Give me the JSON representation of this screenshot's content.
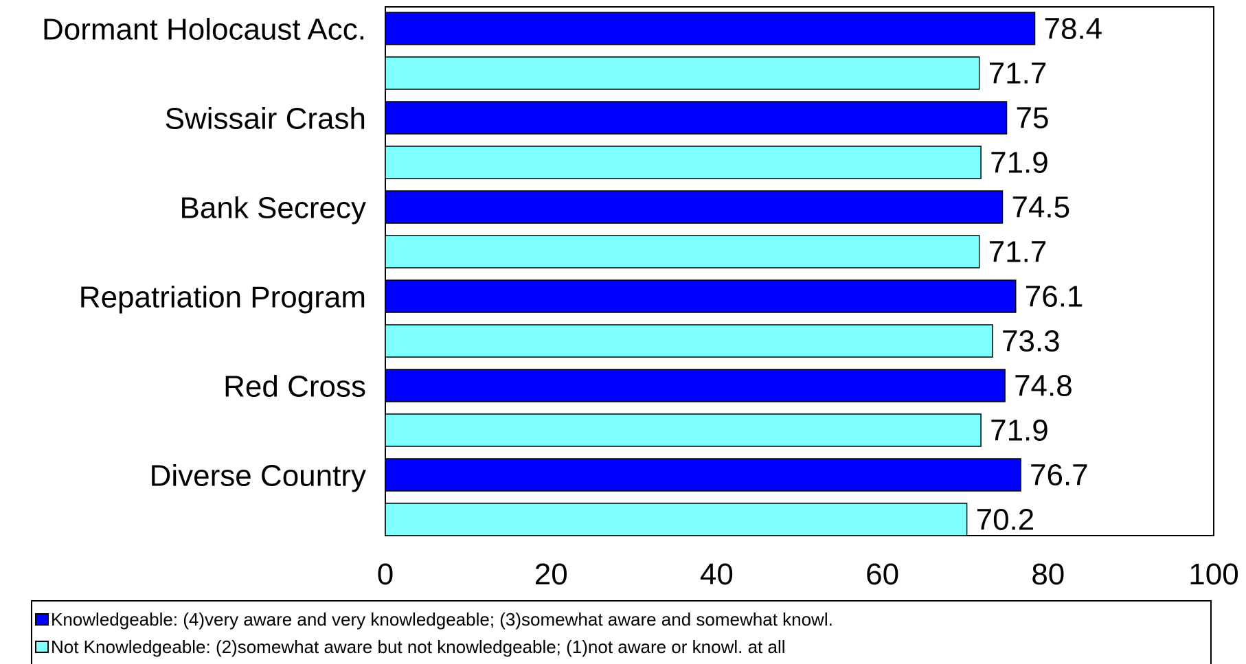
{
  "chart_data": {
    "type": "bar",
    "orientation": "horizontal",
    "categories": [
      "Dormant Holocaust Acc.",
      "Swissair Crash",
      "Bank Secrecy",
      "Repatriation Program",
      "Red Cross",
      "Diverse Country"
    ],
    "series": [
      {
        "name": "Knowledgeable: (4)very aware and very knowledgeable; (3)somewhat aware and somewhat knowl.",
        "color": "#0000ff",
        "values": [
          78.4,
          75,
          74.5,
          76.1,
          74.8,
          76.7
        ]
      },
      {
        "name": "Not Knowledgeable: (2)somewhat aware but not knowledgeable; (1)not aware or knowl. at all",
        "color": "#80ffff",
        "values": [
          71.7,
          71.9,
          71.7,
          73.3,
          71.9,
          70.2
        ]
      }
    ],
    "value_labels": [
      [
        "78.4",
        "75",
        "74.5",
        "76.1",
        "74.8",
        "76.7"
      ],
      [
        "71.7",
        "71.9",
        "71.7",
        "73.3",
        "71.9",
        "70.2"
      ]
    ],
    "xlim": [
      0,
      100
    ],
    "xticks": [
      0,
      20,
      40,
      60,
      80,
      100
    ],
    "xtick_labels": [
      "0",
      "20",
      "40",
      "60",
      "80",
      "100"
    ],
    "grid": false,
    "legend_position": "bottom"
  }
}
